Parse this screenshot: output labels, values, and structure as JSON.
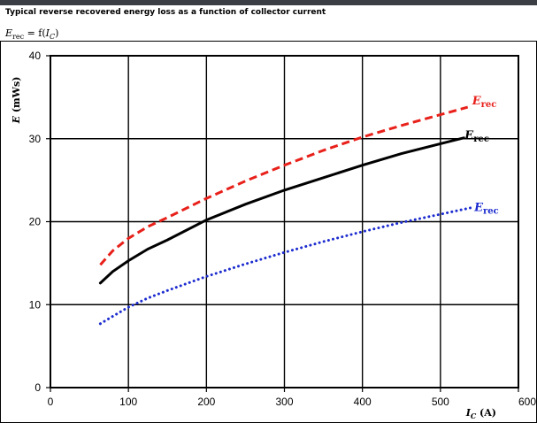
{
  "caption": "Typical reverse recovered energy loss as a function of collector current",
  "formula": {
    "lhs_var": "E",
    "lhs_sub": "rec",
    "eq": " = f(",
    "arg_var": "I",
    "arg_sub": "C",
    "close": ")"
  },
  "colors": {
    "red": "#e8201a",
    "black": "#000000",
    "blue": "#1c2ccf",
    "grid": "#000000",
    "bar": "#3b3f45"
  },
  "chart_data": {
    "type": "line",
    "title": "",
    "xlabel": {
      "var": "I",
      "sub": "C",
      "unit": "(A)"
    },
    "ylabel": {
      "var": "E",
      "unit": "(mWs)"
    },
    "xlim": [
      0,
      600
    ],
    "ylim": [
      0,
      40
    ],
    "xticks": [
      0,
      100,
      200,
      300,
      400,
      500,
      600
    ],
    "yticks": [
      0,
      10,
      20,
      30,
      40
    ],
    "grid": true,
    "series": [
      {
        "label_var": "E",
        "label_sub": "rec",
        "color": "#e8201a",
        "style": "dashed",
        "x": [
          64,
          80,
          100,
          125,
          150,
          200,
          250,
          300,
          350,
          400,
          450,
          500,
          535
        ],
        "y": [
          14.8,
          16.5,
          18.0,
          19.4,
          20.5,
          22.8,
          24.9,
          26.8,
          28.6,
          30.2,
          31.6,
          32.9,
          33.8
        ]
      },
      {
        "label_var": "E",
        "label_sub": "rec",
        "color": "#000000",
        "style": "solid",
        "x": [
          64,
          80,
          100,
          125,
          150,
          200,
          250,
          300,
          350,
          400,
          450,
          500,
          530
        ],
        "y": [
          12.6,
          14.0,
          15.3,
          16.7,
          17.8,
          20.2,
          22.1,
          23.8,
          25.3,
          26.8,
          28.2,
          29.4,
          30.1
        ]
      },
      {
        "label_var": "E",
        "label_sub": "rec",
        "color": "#1c2ccf",
        "style": "dotted",
        "x": [
          64,
          80,
          100,
          125,
          150,
          200,
          250,
          300,
          350,
          400,
          450,
          500,
          540
        ],
        "y": [
          7.7,
          8.6,
          9.7,
          10.8,
          11.7,
          13.4,
          14.9,
          16.3,
          17.6,
          18.8,
          19.9,
          20.9,
          21.7
        ]
      }
    ]
  }
}
